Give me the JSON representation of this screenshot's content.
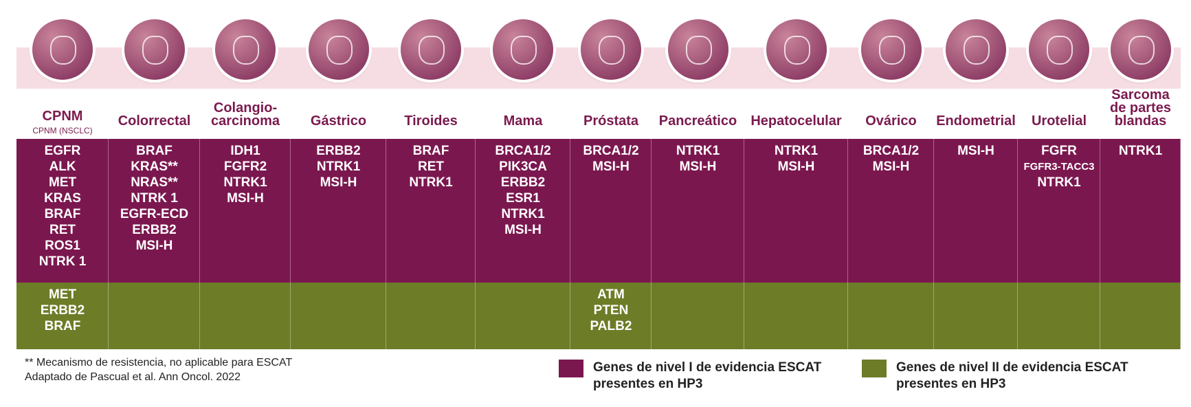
{
  "columns": [
    {
      "header": [
        "CPNM"
      ],
      "subheader": "CPNM (NSCLC)",
      "level1": [
        "EGFR",
        "ALK",
        "MET",
        "KRAS",
        "BRAF",
        "RET",
        "ROS1",
        "NTRK 1"
      ],
      "level2": [
        "MET",
        "ERBB2",
        "BRAF"
      ]
    },
    {
      "header": [
        "Colorrectal"
      ],
      "level1": [
        "BRAF",
        "KRAS**",
        "NRAS**",
        "NTRK 1",
        "EGFR-ECD",
        "ERBB2",
        "MSI-H"
      ],
      "level2": []
    },
    {
      "header": [
        "Colangio-",
        "carcinoma"
      ],
      "level1": [
        "IDH1",
        "FGFR2",
        "NTRK1",
        "MSI-H"
      ],
      "level2": []
    },
    {
      "header": [
        "Gástrico"
      ],
      "level1": [
        "ERBB2",
        "NTRK1",
        "MSI-H"
      ],
      "level2": []
    },
    {
      "header": [
        "Tiroides"
      ],
      "level1": [
        "BRAF",
        "RET",
        "NTRK1"
      ],
      "level2": []
    },
    {
      "header": [
        "Mama"
      ],
      "level1": [
        "BRCA1/2",
        "PIK3CA",
        "ERBB2",
        "ESR1",
        "NTRK1",
        "MSI-H"
      ],
      "level2": []
    },
    {
      "header": [
        "Próstata"
      ],
      "level1": [
        "BRCA1/2",
        "MSI-H"
      ],
      "level2": [
        "ATM",
        "PTEN",
        "PALB2"
      ]
    },
    {
      "header": [
        "Pancreático"
      ],
      "level1": [
        "NTRK1",
        "MSI-H"
      ],
      "level2": []
    },
    {
      "header": [
        "Hepatocelular"
      ],
      "level1": [
        "NTRK1",
        "MSI-H"
      ],
      "level2": []
    },
    {
      "header": [
        "Ovárico"
      ],
      "level1": [
        "BRCA1/2",
        "MSI-H"
      ],
      "level2": []
    },
    {
      "header": [
        "Endometrial"
      ],
      "level1": [
        "MSI-H"
      ],
      "level2": []
    },
    {
      "header": [
        "Urotelial"
      ],
      "level1": [
        "FGFR",
        "FGFR3-TACC3",
        "NTRK1"
      ],
      "level2": []
    },
    {
      "header": [
        "Sarcoma",
        "de partes",
        "blandas"
      ],
      "level1": [
        "NTRK1"
      ],
      "level2": []
    }
  ],
  "footnotes": [
    "** Mecanismo de resistencia, no aplicable para ESCAT",
    "Adaptado de Pascual et al. Ann Oncol. 2022"
  ],
  "legend": [
    {
      "color": "#7b174f",
      "lines": [
        "Genes de nivel I de evidencia ESCAT",
        "presentes en HP3"
      ]
    },
    {
      "color": "#6d7c27",
      "lines": [
        "Genes de nivel II de evidencia ESCAT",
        "presentes en HP3"
      ]
    }
  ]
}
